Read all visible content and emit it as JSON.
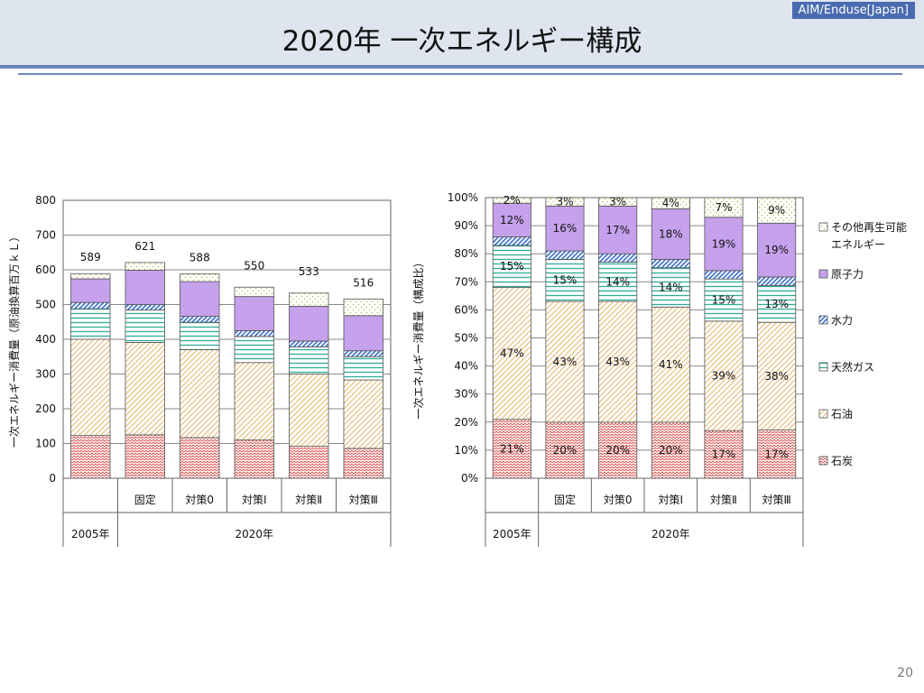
{
  "slide": {
    "title": "2020年 一次エネルギー構成",
    "tag": "AIM/Enduse[Japan]",
    "page": "20"
  },
  "colors": {
    "coal": "#d9534f",
    "oil": "#e8b56a",
    "gas": "#2fae98",
    "hydro": "#3a6fd0",
    "nuclear": "#c9a6ee",
    "renew": "#d9dc8a"
  },
  "legend": [
    "その他再生可能エネルギー",
    "原子力",
    "水力",
    "天然ガス",
    "石油",
    "石炭"
  ],
  "chart_data": [
    {
      "type": "bar",
      "stacked": true,
      "ylabel": "一次エネルギー消費量（原油換算百万ｋＬ）",
      "ylim": [
        0,
        800
      ],
      "yticks": [
        "0",
        "100",
        "200",
        "300",
        "400",
        "500",
        "600",
        "700",
        "800"
      ],
      "categories": [
        "",
        "固定",
        "対策0",
        "対策Ⅰ",
        "対策Ⅱ",
        "対策Ⅲ"
      ],
      "groups": [
        {
          "label": "2005年",
          "span": 1
        },
        {
          "label": "2020年",
          "span": 5
        }
      ],
      "totals": [
        "589",
        "621",
        "588",
        "550",
        "533",
        "516"
      ],
      "grid": true,
      "series": [
        {
          "name": "石炭",
          "values": [
            123,
            125,
            117,
            110,
            92,
            86
          ]
        },
        {
          "name": "石油",
          "values": [
            277,
            266,
            253,
            223,
            208,
            197
          ]
        },
        {
          "name": "天然ガス",
          "values": [
            88,
            93,
            79,
            75,
            78,
            67
          ]
        },
        {
          "name": "水力",
          "values": [
            18,
            16,
            17,
            17,
            17,
            17
          ]
        },
        {
          "name": "原子力",
          "values": [
            68,
            99,
            100,
            98,
            100,
            101
          ]
        },
        {
          "name": "その他再生可能エネルギー",
          "values": [
            15,
            22,
            22,
            27,
            38,
            48
          ]
        }
      ]
    },
    {
      "type": "bar",
      "stacked": true,
      "normalized": true,
      "ylabel": "一次エネルギー消費量（構成比）",
      "ylim": [
        0,
        100
      ],
      "yticks": [
        "0%",
        "10%",
        "20%",
        "30%",
        "40%",
        "50%",
        "60%",
        "70%",
        "80%",
        "90%",
        "100%"
      ],
      "categories": [
        "",
        "固定",
        "対策0",
        "対策Ⅰ",
        "対策Ⅱ",
        "対策Ⅲ"
      ],
      "groups": [
        {
          "label": "2005年",
          "span": 1
        },
        {
          "label": "2020年",
          "span": 5
        }
      ],
      "grid": true,
      "series": [
        {
          "name": "石炭",
          "values": [
            21,
            20,
            20,
            20,
            17,
            17
          ],
          "labels": [
            "21%",
            "20%",
            "20%",
            "20%",
            "17%",
            "17%"
          ]
        },
        {
          "name": "石油",
          "values": [
            47,
            43,
            43,
            41,
            39,
            38
          ],
          "labels": [
            "47%",
            "43%",
            "43%",
            "41%",
            "39%",
            "38%"
          ]
        },
        {
          "name": "天然ガス",
          "values": [
            15,
            15,
            14,
            14,
            15,
            13
          ],
          "labels": [
            "15%",
            "15%",
            "14%",
            "14%",
            "15%",
            "13%"
          ]
        },
        {
          "name": "水力",
          "values": [
            3,
            3,
            3,
            3,
            3,
            3
          ],
          "labels": [
            "",
            "",
            "",
            "",
            "",
            ""
          ]
        },
        {
          "name": "原子力",
          "values": [
            12,
            16,
            17,
            18,
            19,
            19
          ],
          "labels": [
            "12%",
            "16%",
            "17%",
            "18%",
            "19%",
            "19%"
          ]
        },
        {
          "name": "その他再生可能エネルギー",
          "values": [
            2,
            3,
            3,
            4,
            7,
            9
          ],
          "labels": [
            "2%",
            "3%",
            "3%",
            "4%",
            "7%",
            "9%"
          ]
        }
      ]
    }
  ]
}
